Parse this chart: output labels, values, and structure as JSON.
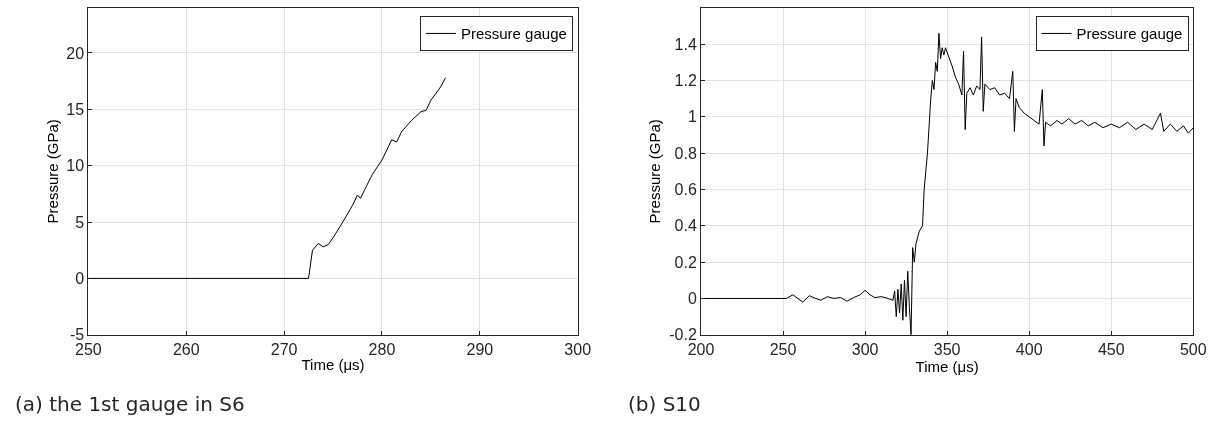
{
  "chart_data": [
    {
      "type": "line",
      "xlabel": "Time (μs)",
      "ylabel": "Pressure (GPa)",
      "annotations": [
        "(a) the 1st gauge in S6"
      ],
      "xlim": [
        250,
        300
      ],
      "xticks": [
        250,
        260,
        270,
        280,
        290,
        300
      ],
      "ylim": [
        -5,
        24
      ],
      "yticks": [
        -5,
        0,
        5,
        10,
        15,
        20
      ],
      "grid": true,
      "legend": "top right",
      "marker": "none",
      "line_style": "solid",
      "series": [
        {
          "name": "Pressure gauge",
          "color": "#000000",
          "x": [
            250,
            265,
            270,
            272.5,
            272.9,
            273.5,
            274,
            274.5,
            275,
            276,
            277,
            277.5,
            277.8,
            279,
            280,
            281,
            281.5,
            282,
            283,
            284,
            284.5,
            285,
            285.5,
            286,
            286.5
          ],
          "values": [
            0,
            0,
            0,
            0,
            2.5,
            3.1,
            2.8,
            3.0,
            3.6,
            5.0,
            6.5,
            7.4,
            7.1,
            9.2,
            10.5,
            12.3,
            12.1,
            13.0,
            14.0,
            14.8,
            14.9,
            15.8,
            16.4,
            17.0,
            17.8
          ]
        }
      ]
    },
    {
      "type": "line",
      "xlabel": "Time (μs)",
      "ylabel": "Pressure (GPa)",
      "annotations": [
        "(b) S10"
      ],
      "xlim": [
        200,
        500
      ],
      "xticks": [
        200,
        250,
        300,
        350,
        400,
        450,
        500
      ],
      "ylim": [
        -0.2,
        1.6
      ],
      "yticks": [
        -0.2,
        0,
        0.2,
        0.4,
        0.6,
        0.8,
        1,
        1.2,
        1.4
      ],
      "grid": true,
      "legend": "top right",
      "marker": "none",
      "line_style": "solid",
      "series": [
        {
          "name": "Pressure gauge",
          "color": "#000000",
          "x": [
            200,
            250,
            252,
            256,
            259,
            262,
            266,
            270,
            273,
            277,
            281,
            285,
            289,
            293,
            297,
            300,
            303,
            306,
            310,
            314,
            317,
            318,
            319,
            320,
            321,
            322,
            323,
            324,
            325,
            326,
            327,
            328,
            329,
            330,
            331,
            333,
            335,
            336,
            338,
            339,
            340,
            341,
            342,
            343,
            344,
            345,
            346,
            347,
            348,
            349,
            351,
            353,
            355,
            357,
            359,
            360,
            361,
            362,
            364,
            366,
            368,
            370,
            371,
            372,
            373,
            376,
            379,
            382,
            385,
            388,
            390,
            391,
            392,
            394,
            397,
            400,
            403,
            406,
            408,
            409,
            410,
            413,
            417,
            420,
            424,
            428,
            432,
            436,
            440,
            445,
            450,
            455,
            460,
            465,
            470,
            475,
            480,
            482,
            486,
            490,
            494,
            497,
            500
          ],
          "values": [
            0,
            0,
            0,
            0.02,
            0,
            -0.02,
            0.015,
            0,
            -0.01,
            0.01,
            0,
            0.005,
            -0.015,
            0.005,
            0.02,
            0.045,
            0.02,
            0.005,
            0.01,
            0,
            -0.01,
            0.04,
            -0.1,
            0.05,
            -0.08,
            0.08,
            -0.12,
            0.1,
            -0.1,
            0.15,
            -0.05,
            -0.2,
            0.28,
            0.2,
            0.3,
            0.37,
            0.4,
            0.6,
            0.8,
            0.95,
            1.1,
            1.2,
            1.15,
            1.3,
            1.25,
            1.46,
            1.32,
            1.38,
            1.34,
            1.38,
            1.33,
            1.28,
            1.22,
            1.18,
            1.12,
            1.36,
            0.93,
            1.13,
            1.16,
            1.12,
            1.17,
            1.15,
            1.44,
            1.03,
            1.18,
            1.15,
            1.16,
            1.12,
            1.13,
            1.1,
            1.25,
            0.92,
            1.1,
            1.05,
            1.02,
            1.0,
            0.98,
            0.96,
            1.15,
            0.84,
            0.97,
            0.95,
            0.98,
            0.96,
            0.99,
            0.96,
            0.98,
            0.95,
            0.97,
            0.94,
            0.96,
            0.94,
            0.97,
            0.93,
            0.96,
            0.93,
            1.02,
            0.92,
            0.96,
            0.92,
            0.95,
            0.91,
            0.94
          ]
        }
      ]
    }
  ]
}
